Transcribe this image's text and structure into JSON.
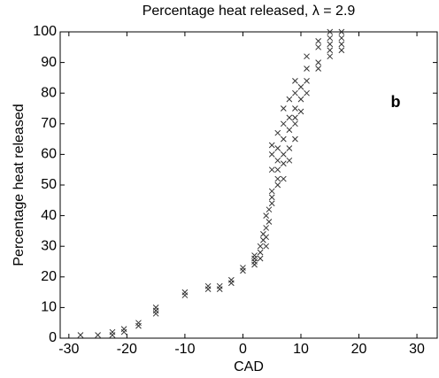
{
  "chart_data": {
    "type": "scatter",
    "title": "Percentage heat released, λ = 2.9",
    "x_label": "CAD",
    "y_label": "Percentage heat released",
    "annotation": "b",
    "marker": "x",
    "color": "#333333",
    "xlim": [
      -31.5,
      33.5
    ],
    "ylim": [
      0,
      100
    ],
    "xticks": [
      -30,
      -20,
      -10,
      0,
      10,
      20,
      30
    ],
    "yticks": [
      0,
      10,
      20,
      30,
      40,
      50,
      60,
      70,
      80,
      90,
      100
    ],
    "x": [
      -28,
      -25,
      -22.5,
      -22.5,
      -20.5,
      -20.5,
      -18,
      -18,
      -15,
      -15,
      -15,
      -10,
      -10,
      -6,
      -6,
      -4,
      -4,
      -2,
      -2,
      0,
      0,
      2,
      2,
      2,
      2,
      3,
      3,
      3,
      3.5,
      3.5,
      4,
      4,
      4,
      4,
      4.5,
      4.5,
      5,
      5,
      5,
      5,
      5,
      5,
      6,
      6,
      6,
      6,
      6,
      6,
      7,
      7,
      7,
      7,
      7,
      7,
      8,
      8,
      8,
      8,
      8,
      9,
      9,
      9,
      9,
      9,
      9,
      10,
      10,
      10,
      11,
      11,
      11,
      11,
      13,
      13,
      13,
      13,
      15,
      15,
      15,
      15,
      15,
      17,
      17,
      17,
      17
    ],
    "values": [
      1,
      1,
      1,
      2,
      2,
      3,
      4,
      5,
      8,
      9,
      10,
      14,
      15,
      16,
      17,
      16,
      17,
      18,
      19,
      22,
      23,
      24,
      25,
      26,
      27,
      26,
      28,
      30,
      32,
      34,
      30,
      33,
      36,
      40,
      38,
      42,
      44,
      46,
      48,
      55,
      60,
      63,
      50,
      52,
      55,
      58,
      62,
      67,
      52,
      57,
      60,
      65,
      70,
      75,
      58,
      62,
      68,
      72,
      78,
      65,
      70,
      72,
      75,
      80,
      84,
      74,
      78,
      82,
      80,
      84,
      88,
      92,
      88,
      90,
      95,
      97,
      92,
      94,
      96,
      98,
      100,
      94,
      96,
      98,
      100
    ]
  }
}
